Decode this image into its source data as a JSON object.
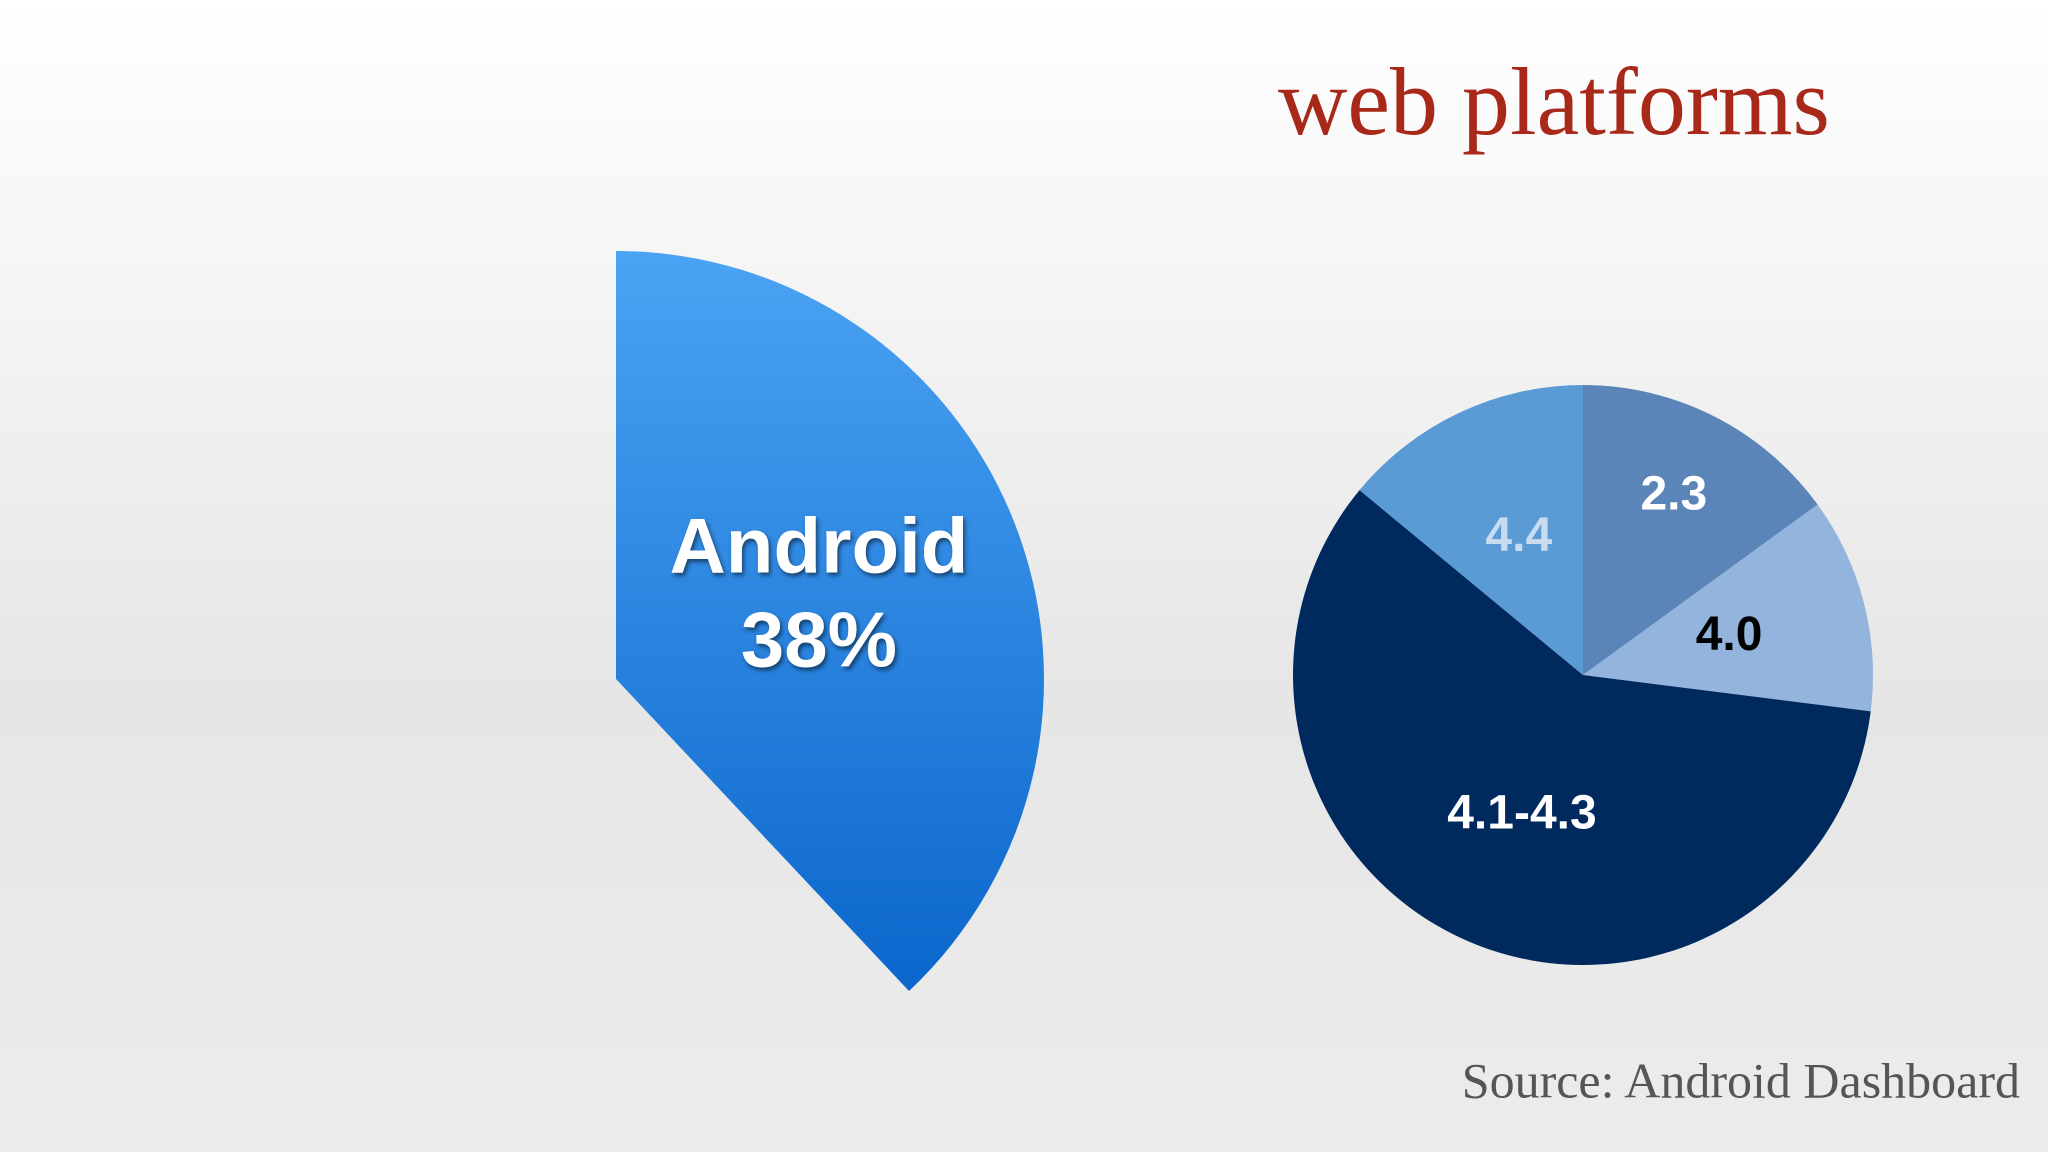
{
  "title": "web platforms",
  "source": "Source: Android Dashboard",
  "chart_data": [
    {
      "type": "pie",
      "categories": [
        "Android"
      ],
      "values": [
        38
      ],
      "value_labels": [
        "38%"
      ],
      "gradient": [
        "#4ba3f3",
        "#0b66cc"
      ],
      "label_color": "#ffffff"
    },
    {
      "type": "pie",
      "categories": [
        "2.3",
        "4.0",
        "4.1-4.3",
        "4.4"
      ],
      "values": [
        15,
        12,
        59,
        14
      ],
      "colors": [
        "#5b84b8",
        "#93b5dd",
        "#002a5e",
        "#5b9bd5"
      ],
      "label_colors": [
        "#ffffff",
        "#000000",
        "#ffffff",
        "#c9dcef"
      ]
    }
  ]
}
